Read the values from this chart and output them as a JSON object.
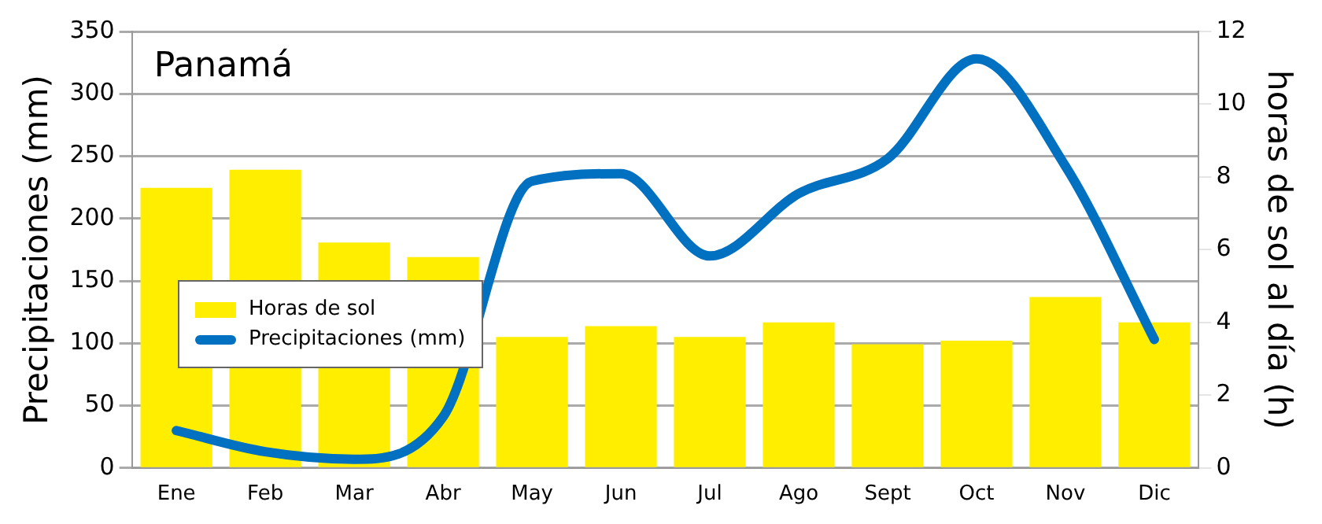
{
  "chart_data": {
    "type": "bar",
    "title": "Panamá",
    "ylabel": "Precipitaciones (mm)",
    "y2label": "horas de sol al día (h)",
    "categories": [
      "Ene",
      "Feb",
      "Mar",
      "Abr",
      "May",
      "Jun",
      "Jul",
      "Ago",
      "Sept",
      "Oct",
      "Nov",
      "Dic"
    ],
    "series": [
      {
        "name": "Horas de sol",
        "axis": "y2",
        "color": "#ffee00",
        "values": [
          7.7,
          8.2,
          6.2,
          5.8,
          3.6,
          3.9,
          3.6,
          4.0,
          3.4,
          3.5,
          4.7,
          4.0
        ]
      },
      {
        "name": "Precipitaciones (mm)",
        "type": "line",
        "axis": "y",
        "color": "#0070c0",
        "values": [
          30,
          13,
          7,
          41,
          230,
          236,
          170,
          220,
          248,
          328,
          242,
          103
        ]
      }
    ],
    "ylim": [
      0,
      350
    ],
    "yticks": [
      0,
      50,
      100,
      150,
      200,
      250,
      300,
      350
    ],
    "y2lim": [
      0,
      12
    ],
    "y2ticks": [
      0,
      2,
      4,
      6,
      8,
      10,
      12
    ],
    "grid": "y",
    "legend": "left",
    "marker": "none"
  }
}
